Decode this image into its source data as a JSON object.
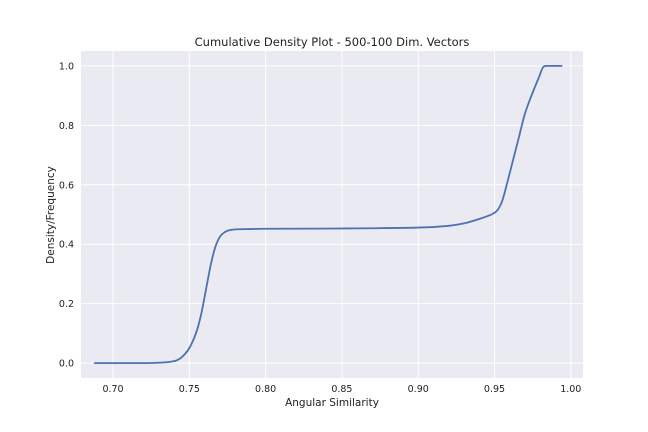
{
  "chart_data": {
    "type": "line",
    "title": "Cumulative Density Plot - 500-100 Dim. Vectors",
    "xlabel": "Angular Similarity",
    "ylabel": "Density/Frequency",
    "xlim": [
      0.679,
      1.008
    ],
    "ylim": [
      -0.05,
      1.05
    ],
    "xticks": [
      0.7,
      0.75,
      0.8,
      0.85,
      0.9,
      0.95,
      1.0
    ],
    "xtick_labels": [
      "0.70",
      "0.75",
      "0.80",
      "0.85",
      "0.90",
      "0.95",
      "1.00"
    ],
    "yticks": [
      0.0,
      0.2,
      0.4,
      0.6,
      0.8,
      1.0
    ],
    "ytick_labels": [
      "0.0",
      "0.2",
      "0.4",
      "0.6",
      "0.8",
      "1.0"
    ],
    "grid": true,
    "colors": {
      "background": "#EAEAF2",
      "grid": "#FFFFFF",
      "line": "#4C72B0"
    },
    "series": [
      {
        "x": [
          0.688,
          0.7,
          0.72,
          0.735,
          0.742,
          0.747,
          0.751,
          0.755,
          0.758,
          0.761,
          0.764,
          0.767,
          0.77,
          0.773,
          0.776,
          0.78,
          0.79,
          0.8,
          0.85,
          0.9,
          0.92,
          0.93,
          0.94,
          0.948,
          0.952,
          0.955,
          0.958,
          0.962,
          0.966,
          0.97,
          0.975,
          0.979,
          0.982,
          0.985,
          0.994
        ],
        "y": [
          0.0,
          0.0,
          0.0,
          0.003,
          0.01,
          0.03,
          0.06,
          0.11,
          0.17,
          0.25,
          0.33,
          0.39,
          0.425,
          0.44,
          0.447,
          0.45,
          0.451,
          0.452,
          0.453,
          0.456,
          0.462,
          0.47,
          0.485,
          0.5,
          0.515,
          0.545,
          0.6,
          0.68,
          0.76,
          0.84,
          0.91,
          0.96,
          0.997,
          1.0,
          1.0
        ]
      }
    ]
  }
}
